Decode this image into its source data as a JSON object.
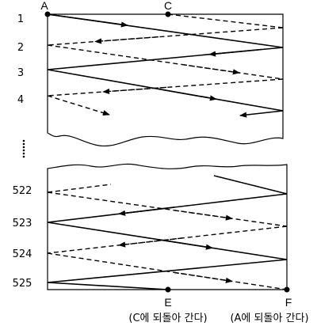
{
  "points": {
    "a": "A",
    "c": "C",
    "e": "E",
    "f": "F"
  },
  "row_labels": {
    "r1": "1",
    "r2": "2",
    "r3": "3",
    "r4": "4",
    "r522": "522",
    "r523": "523",
    "r524": "524",
    "r525": "525"
  },
  "notes": {
    "left": "(C에 되돌아 간다)",
    "right": "(A에 되돌아 간다)"
  },
  "colors": {
    "ink": "#000000",
    "background": "#ffffff"
  }
}
